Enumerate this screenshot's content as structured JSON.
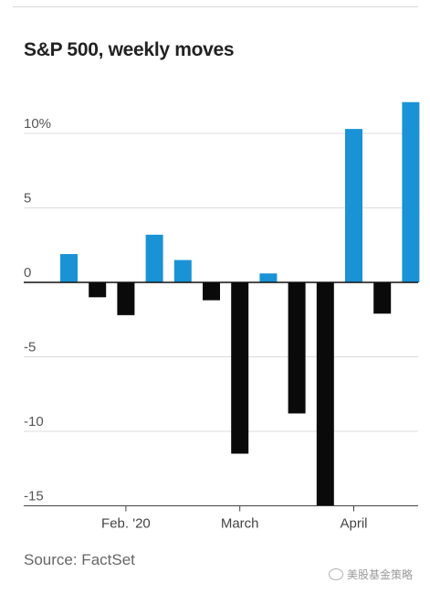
{
  "chart_data": {
    "type": "bar",
    "title": "S&P 500, weekly moves",
    "xlabel": "",
    "ylabel": "",
    "ylim": [
      -15,
      12
    ],
    "yticks": [
      {
        "value": 10,
        "label": "10%"
      },
      {
        "value": 5,
        "label": "5"
      },
      {
        "value": 0,
        "label": "0"
      },
      {
        "value": -5,
        "label": "-5"
      },
      {
        "value": -10,
        "label": "-10"
      },
      {
        "value": -15,
        "label": "-15"
      }
    ],
    "xticks": [
      {
        "label": "Feb. '20",
        "at_bar": 2.5
      },
      {
        "label": "March",
        "at_bar": 6.5
      },
      {
        "label": "April",
        "at_bar": 10.5
      }
    ],
    "values": [
      1.9,
      -1.0,
      -2.2,
      3.2,
      1.5,
      -1.2,
      -11.5,
      0.6,
      -8.8,
      -15.0,
      10.3,
      -2.1,
      12.1
    ],
    "colors": {
      "positive": "#1a92d6",
      "negative": "#0a0a0a"
    },
    "grid": true,
    "legend": "none"
  },
  "source": "Source: FactSet",
  "watermark": "美股基金策略"
}
